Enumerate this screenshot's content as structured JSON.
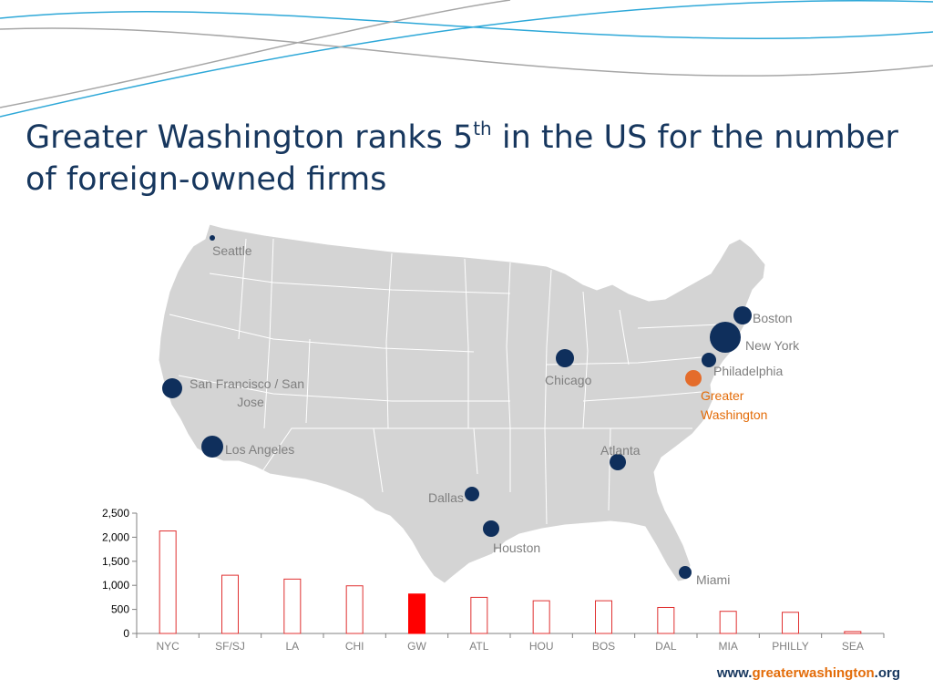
{
  "title": {
    "part1": "Greater Washington ranks 5",
    "sup": "th",
    "part2": " in the US for the number of foreign-owned firms"
  },
  "website": {
    "prefix": "www.",
    "name": "greaterwashington",
    "suffix": ".org"
  },
  "colors": {
    "title": "#17375e",
    "dot": "#0f2f5c",
    "highlight_dot": "#e46c2b",
    "label": "#7f7f7f",
    "highlight_label": "#e36c09",
    "bar_outline": "#e03030",
    "bar_highlight": "#ff0000",
    "wave_blue": "#2ea8d8",
    "wave_gray": "#a6a6a6",
    "map_fill": "#d4d4d4",
    "map_border": "#ffffff"
  },
  "map": {
    "cities": [
      {
        "name": "Seattle",
        "label": "Seattle"
      },
      {
        "name": "San Francisco / San Jose",
        "label_line1": "San Francisco / San",
        "label_line2": "Jose"
      },
      {
        "name": "Los Angeles",
        "label": "Los Angeles"
      },
      {
        "name": "Dallas",
        "label": "Dallas"
      },
      {
        "name": "Houston",
        "label": "Houston"
      },
      {
        "name": "Chicago",
        "label": "Chicago"
      },
      {
        "name": "Atlanta",
        "label": "Atlanta"
      },
      {
        "name": "Miami",
        "label": "Miami"
      },
      {
        "name": "Boston",
        "label": "Boston"
      },
      {
        "name": "New York",
        "label": "New York"
      },
      {
        "name": "Philadelphia",
        "label": "Philadelphia"
      },
      {
        "name": "Greater Washington",
        "label_line1": "Greater",
        "label_line2": "Washington",
        "highlight": true
      }
    ]
  },
  "chart_data": {
    "type": "bar",
    "title": "",
    "xlabel": "",
    "ylabel": "",
    "categories": [
      "NYC",
      "SF/SJ",
      "LA",
      "CHI",
      "GW",
      "ATL",
      "HOU",
      "BOS",
      "DAL",
      "MIA",
      "PHILLY",
      "SEA"
    ],
    "values": [
      2130,
      1210,
      1130,
      990,
      820,
      750,
      680,
      680,
      540,
      460,
      440,
      40
    ],
    "highlight_category": "GW",
    "ylim": [
      0,
      2500
    ],
    "yticks": [
      0,
      500,
      1000,
      1500,
      2000,
      2500
    ],
    "ytick_labels": [
      "0",
      "500",
      "1,000",
      "1,500",
      "2,000",
      "2,500"
    ],
    "grid": false,
    "legend": "none"
  }
}
